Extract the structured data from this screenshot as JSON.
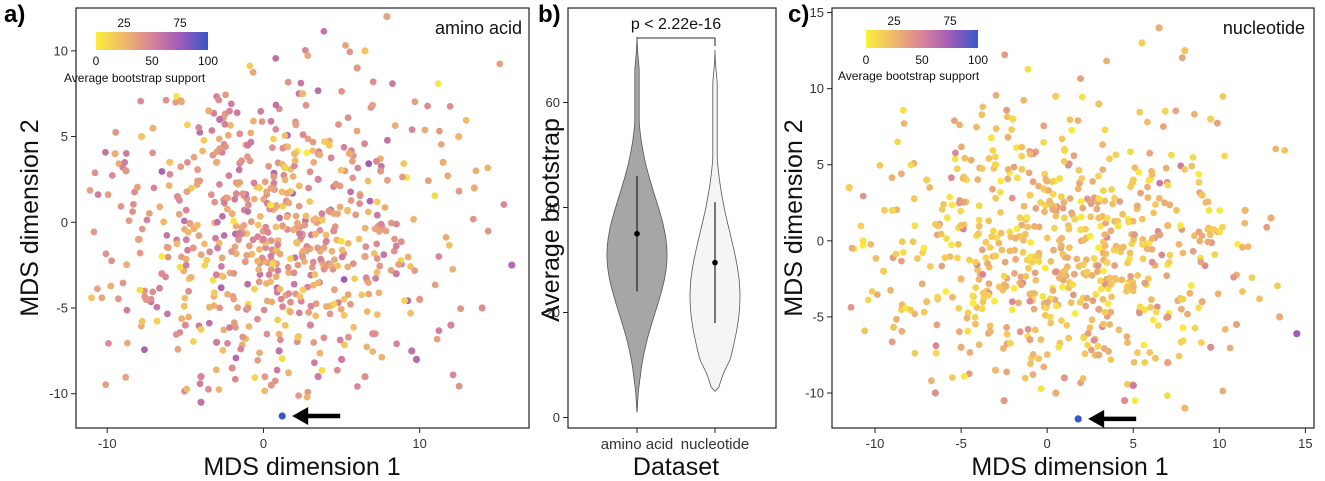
{
  "panels": {
    "a": {
      "letter": "a)",
      "corner_label": "amino acid",
      "colorbar": {
        "ticks_top": [
          "25",
          "75"
        ],
        "ticks_bottom": [
          "0",
          "50",
          "100"
        ],
        "title": "Average bootstrap support"
      }
    },
    "b": {
      "letter": "b)",
      "pvalue_text": "p < 2.22e-16"
    },
    "c": {
      "letter": "c)",
      "corner_label": "nucleotide",
      "colorbar": {
        "ticks_top": [
          "25",
          "75"
        ],
        "ticks_bottom": [
          "0",
          "50",
          "100"
        ],
        "title": "Average bootstrap support"
      }
    }
  },
  "colors": {
    "low": "#f9ef3a",
    "mid_low": "#f0b86a",
    "mid": "#d8839a",
    "mid_high": "#a05bb8",
    "high": "#3957c8",
    "violin_aa": "#a6a6a6",
    "violin_nt": "#f5f5f5"
  },
  "chart_data": [
    {
      "type": "scatter",
      "panel": "a",
      "title": "amino acid",
      "xlabel": "MDS dimension 1",
      "ylabel": "MDS dimension 2",
      "xlim": [
        -12,
        17
      ],
      "ylim": [
        -12,
        12.5
      ],
      "xticks": [
        -10,
        0,
        10
      ],
      "yticks": [
        -10,
        -5,
        0,
        5,
        10
      ],
      "color_scale": {
        "label": "Average bootstrap support",
        "range": [
          0,
          100
        ]
      },
      "summary": "about 700 points, one per gene, spread roughly from x -11 to 16 and y -10.5 to 12; colors mostly 20-60",
      "points": [
        [
          7.9,
          12.0,
          35
        ],
        [
          6.5,
          10.0,
          20
        ],
        [
          6.0,
          9.0,
          40
        ],
        [
          -3.5,
          6.5,
          30
        ],
        [
          -2.8,
          6.0,
          60
        ],
        [
          2.5,
          7.5,
          25
        ],
        [
          -9.5,
          4.0,
          30
        ],
        [
          -7.8,
          5.0,
          20
        ],
        [
          -8.8,
          3.0,
          40
        ],
        [
          -6.0,
          3.5,
          20
        ],
        [
          -5.5,
          1.5,
          45
        ],
        [
          -3.0,
          3.5,
          30
        ],
        [
          -1.0,
          4.5,
          55
        ],
        [
          0.5,
          2.0,
          35
        ],
        [
          2.0,
          4.0,
          25
        ],
        [
          3.5,
          2.5,
          50
        ],
        [
          5.5,
          4.0,
          30
        ],
        [
          7.5,
          3.0,
          40
        ],
        [
          11.5,
          3.5,
          30
        ],
        [
          12.5,
          5.0,
          25
        ],
        [
          13.5,
          2.0,
          30
        ],
        [
          -8.0,
          -1.0,
          35
        ],
        [
          -6.5,
          -3.0,
          45
        ],
        [
          -4.5,
          -1.5,
          40
        ],
        [
          -2.0,
          0.5,
          30
        ],
        [
          0.0,
          -1.0,
          50
        ],
        [
          2.5,
          -2.0,
          40
        ],
        [
          4.5,
          -0.5,
          45
        ],
        [
          6.5,
          -2.0,
          35
        ],
        [
          8.5,
          -3.0,
          55
        ],
        [
          10.0,
          -4.5,
          40
        ],
        [
          12.0,
          -6.0,
          50
        ],
        [
          14.0,
          -5.0,
          45
        ],
        [
          15.9,
          -2.5,
          65
        ],
        [
          -7.5,
          -4.5,
          40
        ],
        [
          -5.0,
          -6.0,
          45
        ],
        [
          -3.0,
          -7.0,
          55
        ],
        [
          -1.0,
          -5.0,
          40
        ],
        [
          1.0,
          -7.5,
          60
        ],
        [
          3.0,
          -6.0,
          50
        ],
        [
          5.0,
          -8.0,
          55
        ],
        [
          7.0,
          -6.5,
          45
        ],
        [
          9.5,
          -7.5,
          60
        ],
        [
          -4.0,
          -9.0,
          50
        ],
        [
          -2.0,
          -8.5,
          45
        ],
        [
          0.5,
          -9.5,
          40
        ],
        [
          3.5,
          -9.0,
          55
        ],
        [
          6.5,
          -9.0,
          45
        ],
        [
          9.8,
          -8.0,
          65
        ],
        [
          -4.0,
          -10.5,
          60
        ],
        [
          1.2,
          -11.3,
          100
        ]
      ],
      "annotations": [
        {
          "type": "arrow",
          "points_to": [
            1.2,
            -11.3
          ],
          "direction": "left"
        }
      ]
    },
    {
      "type": "violin",
      "panel": "b",
      "xlabel": "Dataset",
      "ylabel": "Average bootstrap",
      "categories": [
        "amino acid",
        "nucleotide"
      ],
      "ylim": [
        -2,
        78
      ],
      "yticks": [
        0,
        20,
        40,
        60
      ],
      "series": [
        {
          "name": "amino acid",
          "min": 1,
          "max": 72.5,
          "q1": 24,
          "median": 35,
          "q3": 46
        },
        {
          "name": "nucleotide",
          "min": 5,
          "max": 70,
          "q1": 18,
          "median": 29.5,
          "q3": 41
        }
      ],
      "annotation": "p < 2.22e-16"
    },
    {
      "type": "scatter",
      "panel": "c",
      "title": "nucleotide",
      "xlabel": "MDS dimension 1",
      "ylabel": "MDS dimension 2",
      "xlim": [
        -12.5,
        15.5
      ],
      "ylim": [
        -12.3,
        15.3
      ],
      "xticks": [
        -10,
        -5,
        0,
        5,
        10,
        15
      ],
      "yticks": [
        -10,
        -5,
        0,
        5,
        10,
        15
      ],
      "color_scale": {
        "label": "Average bootstrap support",
        "range": [
          0,
          100
        ]
      },
      "summary": "about 700 points, one per gene, spread roughly from x -12 to 15 and y -11.5 to 14; colors mostly 5-45",
      "points": [
        [
          6.5,
          14.0,
          30
        ],
        [
          5.5,
          13.0,
          15
        ],
        [
          8.0,
          12.5,
          20
        ],
        [
          9.5,
          8.0,
          15
        ],
        [
          -2.0,
          8.0,
          10
        ],
        [
          0.5,
          9.5,
          15
        ],
        [
          3.0,
          9.0,
          20
        ],
        [
          -11.5,
          3.5,
          15
        ],
        [
          -9.0,
          2.0,
          10
        ],
        [
          -7.0,
          4.0,
          15
        ],
        [
          -5.0,
          1.0,
          20
        ],
        [
          -3.0,
          5.0,
          10
        ],
        [
          -1.0,
          3.0,
          15
        ],
        [
          1.0,
          6.0,
          10
        ],
        [
          3.0,
          1.5,
          20
        ],
        [
          5.0,
          4.0,
          15
        ],
        [
          7.0,
          1.0,
          25
        ],
        [
          9.0,
          3.0,
          20
        ],
        [
          11.5,
          2.0,
          25
        ],
        [
          13.0,
          1.5,
          30
        ],
        [
          -9.5,
          -2.0,
          15
        ],
        [
          -7.0,
          -4.0,
          20
        ],
        [
          -5.0,
          -2.5,
          25
        ],
        [
          -3.0,
          -1.0,
          15
        ],
        [
          -1.0,
          -3.5,
          25
        ],
        [
          1.0,
          -2.0,
          20
        ],
        [
          3.0,
          -4.5,
          35
        ],
        [
          5.0,
          -3.0,
          25
        ],
        [
          7.0,
          -5.0,
          40
        ],
        [
          9.0,
          -4.0,
          30
        ],
        [
          11.0,
          -5.5,
          35
        ],
        [
          13.5,
          -5.0,
          30
        ],
        [
          -5.0,
          -7.0,
          30
        ],
        [
          -3.0,
          -8.5,
          25
        ],
        [
          -1.0,
          -6.5,
          35
        ],
        [
          1.0,
          -9.0,
          40
        ],
        [
          3.0,
          -7.5,
          30
        ],
        [
          5.0,
          -9.5,
          55
        ],
        [
          7.0,
          -8.0,
          35
        ],
        [
          9.5,
          -7.0,
          45
        ],
        [
          -2.5,
          -10.5,
          40
        ],
        [
          0.5,
          -10.0,
          30
        ],
        [
          4.5,
          -10.5,
          45
        ],
        [
          8.0,
          -11.0,
          25
        ],
        [
          -6.5,
          -10.0,
          45
        ],
        [
          14.5,
          -6.1,
          75
        ],
        [
          1.8,
          -11.7,
          100
        ]
      ],
      "annotations": [
        {
          "type": "arrow",
          "points_to": [
            1.8,
            -11.7
          ],
          "direction": "left"
        }
      ]
    }
  ]
}
